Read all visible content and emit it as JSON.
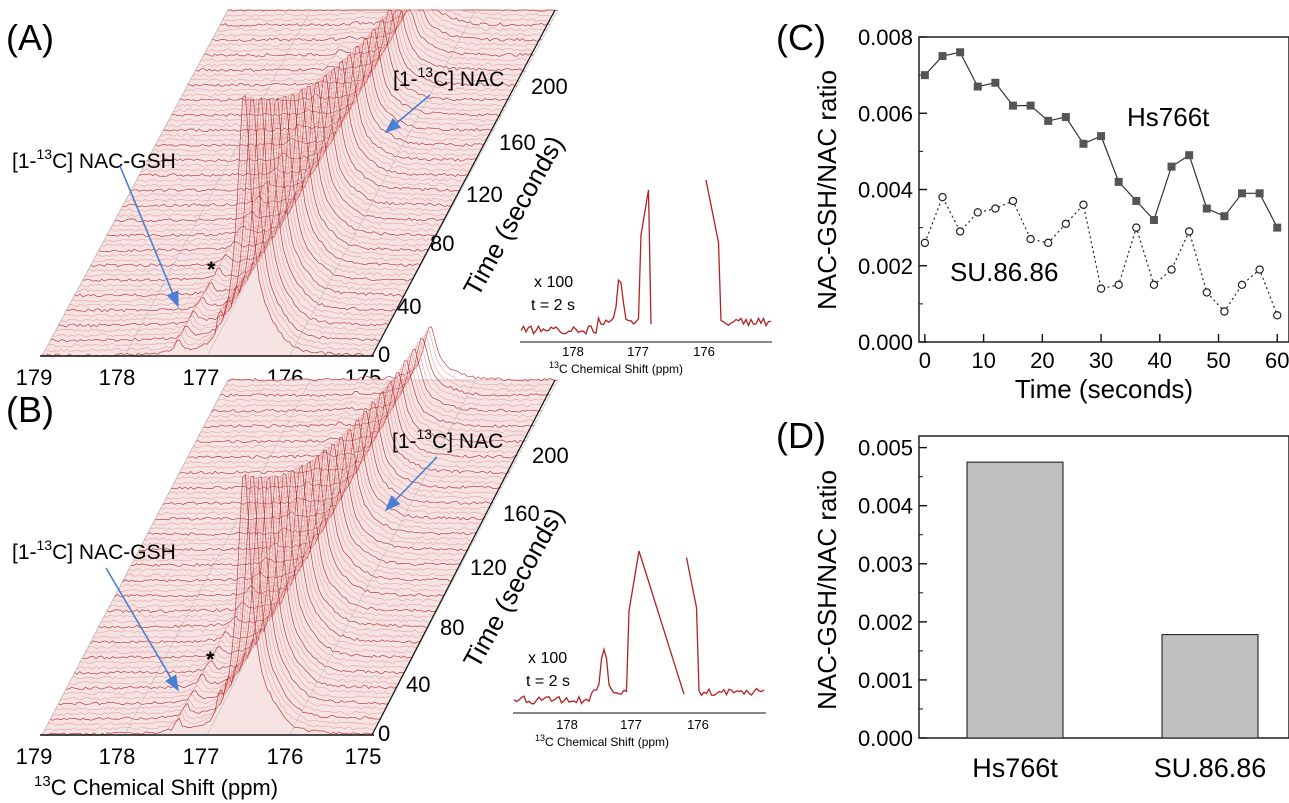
{
  "panels": {
    "A": {
      "label": "(A)",
      "x_ticks": [
        "179",
        "178",
        "177",
        "176",
        "175"
      ],
      "time_ticks": [
        "0",
        "40",
        "80",
        "120",
        "160",
        "200"
      ],
      "time_axis_label": "Time (seconds)",
      "nac_label": "[1-13C] NAC",
      "gsh_label": "[1-13C] NAC-GSH",
      "star": "*",
      "inset": {
        "scale_text": "x 100",
        "time_text": "t = 2 s",
        "x_ticks": [
          "178",
          "177",
          "176"
        ],
        "xlabel": "13C Chemical Shift (ppm)"
      }
    },
    "B": {
      "label": "(B)",
      "x_ticks": [
        "179",
        "178",
        "177",
        "176",
        "175"
      ],
      "time_ticks": [
        "0",
        "40",
        "80",
        "120",
        "160",
        "200"
      ],
      "time_axis_label": "Time (seconds)",
      "nac_label": "[1-13C] NAC",
      "gsh_label": "[1-13C] NAC-GSH",
      "star": "*",
      "x_axis_label": "13C Chemical Shift (ppm)",
      "inset": {
        "scale_text": "x 100",
        "time_text": "t = 2 s",
        "x_ticks": [
          "178",
          "177",
          "176"
        ],
        "xlabel": "13C Chemical Shift (ppm)"
      }
    },
    "C": {
      "label": "(C)"
    },
    "D": {
      "label": "(D)"
    }
  },
  "colors": {
    "spectrum": "#b22222",
    "spectrum_light": "#e8a0a0",
    "arrow": "#4a7fd4",
    "series_fill": "#555555",
    "bar_fill": "#c0c0c0"
  },
  "chart_data": [
    {
      "panel": "C",
      "type": "line",
      "xlabel": "Time (seconds)",
      "ylabel": "NAC-GSH/NAC ratio",
      "xlim": [
        -1,
        62
      ],
      "ylim": [
        0,
        0.008
      ],
      "x_ticks": [
        0,
        10,
        20,
        30,
        40,
        50,
        60
      ],
      "y_ticks": [
        "0.000",
        "0.002",
        "0.004",
        "0.006",
        "0.008"
      ],
      "series": [
        {
          "name": "Hs766t",
          "marker": "filled-square",
          "line": "solid",
          "x": [
            0,
            3,
            6,
            9,
            12,
            15,
            18,
            21,
            24,
            27,
            30,
            33,
            36,
            39,
            42,
            45,
            48,
            51,
            54,
            57,
            60
          ],
          "y": [
            0.007,
            0.0075,
            0.0076,
            0.0067,
            0.0068,
            0.0062,
            0.0062,
            0.0058,
            0.0059,
            0.0052,
            0.0054,
            0.0042,
            0.0037,
            0.0032,
            0.0046,
            0.0049,
            0.0035,
            0.0033,
            0.0039,
            0.0039,
            0.003
          ]
        },
        {
          "name": "SU.86.86",
          "marker": "open-circle",
          "line": "dotted",
          "x": [
            0,
            3,
            6,
            9,
            12,
            15,
            18,
            21,
            24,
            27,
            30,
            33,
            36,
            39,
            42,
            45,
            48,
            51,
            54,
            57,
            60
          ],
          "y": [
            0.0026,
            0.0038,
            0.0029,
            0.0034,
            0.0035,
            0.0037,
            0.0027,
            0.0026,
            0.0031,
            0.0036,
            0.0014,
            0.0015,
            0.003,
            0.0015,
            0.0019,
            0.0029,
            0.0013,
            0.0008,
            0.0015,
            0.0019,
            0.0007
          ]
        }
      ]
    },
    {
      "panel": "D",
      "type": "bar",
      "ylabel": "NAC-GSH/NAC ratio",
      "ylim": [
        0,
        0.0052
      ],
      "y_ticks": [
        "0.000",
        "0.001",
        "0.002",
        "0.003",
        "0.004",
        "0.005"
      ],
      "categories": [
        "Hs766t",
        "SU.86.86"
      ],
      "values": [
        0.00475,
        0.00178
      ]
    }
  ]
}
